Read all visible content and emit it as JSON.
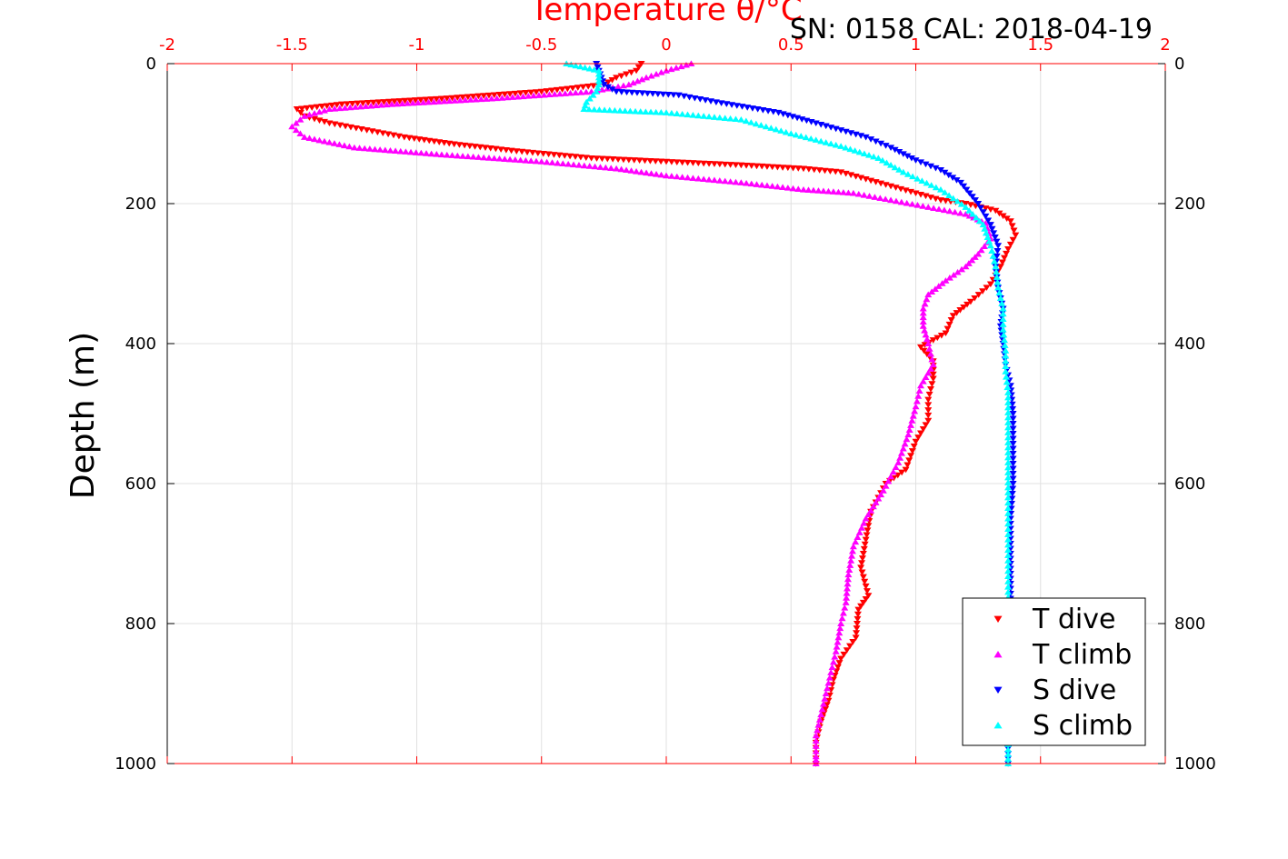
{
  "header": {
    "serial_text": "SN: 0158  CAL: 2018-04-19"
  },
  "chart_data": {
    "type": "scatter",
    "title": "Temperature θ/°C",
    "xlabel": "Temperature θ/°C",
    "ylabel": "Depth (m)",
    "xlim": [
      -2,
      2
    ],
    "ylim": [
      1000,
      0
    ],
    "y_reversed": true,
    "grid": true,
    "legend_position": "bottom-right",
    "x_ticks": [
      -2,
      -1.5,
      -1,
      -0.5,
      0,
      0.5,
      1,
      1.5,
      2
    ],
    "x_tick_labels": [
      "-2",
      "-1.5",
      "-1",
      "-0.5",
      "0",
      "0.5",
      "1",
      "1.5",
      "2"
    ],
    "y_ticks": [
      0,
      200,
      400,
      600,
      800,
      1000
    ],
    "y_tick_labels": [
      "0",
      "200",
      "400",
      "600",
      "800",
      "1000"
    ],
    "series": [
      {
        "name": "T dive",
        "color": "#ff0000",
        "marker": "triangle-down",
        "points": [
          [
            -0.1,
            0
          ],
          [
            -0.12,
            10
          ],
          [
            -0.2,
            20
          ],
          [
            -0.25,
            30
          ],
          [
            -0.5,
            40
          ],
          [
            -0.9,
            50
          ],
          [
            -1.3,
            58
          ],
          [
            -1.48,
            65
          ],
          [
            -1.45,
            75
          ],
          [
            -1.35,
            85
          ],
          [
            -1.2,
            95
          ],
          [
            -1.05,
            105
          ],
          [
            -0.85,
            115
          ],
          [
            -0.6,
            125
          ],
          [
            -0.3,
            135
          ],
          [
            0.0,
            140
          ],
          [
            0.3,
            145
          ],
          [
            0.55,
            150
          ],
          [
            0.7,
            155
          ],
          [
            0.8,
            165
          ],
          [
            0.9,
            175
          ],
          [
            1.0,
            185
          ],
          [
            1.1,
            195
          ],
          [
            1.2,
            200
          ],
          [
            1.32,
            210
          ],
          [
            1.38,
            225
          ],
          [
            1.4,
            245
          ],
          [
            1.37,
            265
          ],
          [
            1.34,
            290
          ],
          [
            1.3,
            315
          ],
          [
            1.22,
            340
          ],
          [
            1.15,
            360
          ],
          [
            1.12,
            385
          ],
          [
            1.02,
            405
          ],
          [
            1.07,
            425
          ],
          [
            1.07,
            450
          ],
          [
            1.05,
            480
          ],
          [
            1.05,
            510
          ],
          [
            1.0,
            540
          ],
          [
            0.96,
            580
          ],
          [
            0.88,
            600
          ],
          [
            0.82,
            640
          ],
          [
            0.8,
            680
          ],
          [
            0.78,
            720
          ],
          [
            0.81,
            760
          ],
          [
            0.77,
            780
          ],
          [
            0.76,
            820
          ],
          [
            0.7,
            850
          ],
          [
            0.67,
            880
          ],
          [
            0.65,
            910
          ],
          [
            0.62,
            940
          ],
          [
            0.6,
            970
          ],
          [
            0.6,
            1000
          ]
        ]
      },
      {
        "name": "T climb",
        "color": "#ff00ff",
        "marker": "triangle-up",
        "points": [
          [
            0.1,
            0
          ],
          [
            0.0,
            10
          ],
          [
            -0.08,
            20
          ],
          [
            -0.15,
            30
          ],
          [
            -0.3,
            40
          ],
          [
            -0.7,
            50
          ],
          [
            -1.1,
            58
          ],
          [
            -1.35,
            65
          ],
          [
            -1.45,
            75
          ],
          [
            -1.5,
            90
          ],
          [
            -1.45,
            105
          ],
          [
            -1.25,
            120
          ],
          [
            -0.9,
            130
          ],
          [
            -0.5,
            140
          ],
          [
            -0.2,
            150
          ],
          [
            0.0,
            160
          ],
          [
            0.3,
            170
          ],
          [
            0.55,
            180
          ],
          [
            0.75,
            185
          ],
          [
            0.9,
            195
          ],
          [
            1.05,
            205
          ],
          [
            1.2,
            215
          ],
          [
            1.28,
            228
          ],
          [
            1.3,
            250
          ],
          [
            1.25,
            272
          ],
          [
            1.2,
            290
          ],
          [
            1.12,
            310
          ],
          [
            1.05,
            330
          ],
          [
            1.03,
            350
          ],
          [
            1.03,
            375
          ],
          [
            1.05,
            400
          ],
          [
            1.07,
            430
          ],
          [
            1.02,
            460
          ],
          [
            1.0,
            490
          ],
          [
            0.97,
            530
          ],
          [
            0.93,
            570
          ],
          [
            0.87,
            610
          ],
          [
            0.8,
            650
          ],
          [
            0.75,
            690
          ],
          [
            0.73,
            730
          ],
          [
            0.72,
            770
          ],
          [
            0.7,
            800
          ],
          [
            0.68,
            840
          ],
          [
            0.66,
            870
          ],
          [
            0.64,
            900
          ],
          [
            0.62,
            930
          ],
          [
            0.6,
            960
          ],
          [
            0.6,
            990
          ],
          [
            0.6,
            1000
          ]
        ]
      },
      {
        "name": "S dive",
        "color": "#0000ff",
        "marker": "triangle-down",
        "points": [
          [
            -0.28,
            0
          ],
          [
            -0.27,
            10
          ],
          [
            -0.26,
            20
          ],
          [
            -0.25,
            30
          ],
          [
            -0.2,
            40
          ],
          [
            0.05,
            45
          ],
          [
            0.2,
            55
          ],
          [
            0.45,
            70
          ],
          [
            0.6,
            85
          ],
          [
            0.8,
            105
          ],
          [
            0.9,
            120
          ],
          [
            1.0,
            138
          ],
          [
            1.1,
            152
          ],
          [
            1.18,
            170
          ],
          [
            1.25,
            200
          ],
          [
            1.3,
            230
          ],
          [
            1.33,
            260
          ],
          [
            1.32,
            290
          ],
          [
            1.33,
            320
          ],
          [
            1.35,
            350
          ],
          [
            1.34,
            375
          ],
          [
            1.35,
            400
          ],
          [
            1.36,
            430
          ],
          [
            1.38,
            460
          ],
          [
            1.39,
            500
          ],
          [
            1.39,
            550
          ],
          [
            1.39,
            600
          ],
          [
            1.38,
            650
          ],
          [
            1.38,
            700
          ],
          [
            1.38,
            750
          ],
          [
            1.38,
            800
          ],
          [
            1.37,
            850
          ],
          [
            1.37,
            900
          ],
          [
            1.37,
            950
          ],
          [
            1.37,
            1000
          ]
        ]
      },
      {
        "name": "S climb",
        "color": "#00ffff",
        "marker": "triangle-up",
        "points": [
          [
            -0.4,
            0
          ],
          [
            -0.27,
            10
          ],
          [
            -0.27,
            20
          ],
          [
            -0.27,
            30
          ],
          [
            -0.28,
            40
          ],
          [
            -0.32,
            55
          ],
          [
            -0.33,
            65
          ],
          [
            0.0,
            70
          ],
          [
            0.3,
            80
          ],
          [
            0.5,
            100
          ],
          [
            0.7,
            118
          ],
          [
            0.85,
            135
          ],
          [
            0.95,
            155
          ],
          [
            1.1,
            180
          ],
          [
            1.2,
            205
          ],
          [
            1.27,
            230
          ],
          [
            1.3,
            260
          ],
          [
            1.32,
            290
          ],
          [
            1.33,
            320
          ],
          [
            1.35,
            350
          ],
          [
            1.35,
            380
          ],
          [
            1.36,
            410
          ],
          [
            1.36,
            440
          ],
          [
            1.37,
            470
          ],
          [
            1.37,
            520
          ],
          [
            1.37,
            570
          ],
          [
            1.37,
            620
          ],
          [
            1.37,
            680
          ],
          [
            1.37,
            740
          ],
          [
            1.37,
            800
          ],
          [
            1.37,
            860
          ],
          [
            1.37,
            920
          ],
          [
            1.37,
            980
          ],
          [
            1.37,
            1000
          ]
        ]
      }
    ]
  }
}
